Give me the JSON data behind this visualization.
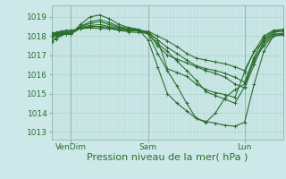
{
  "background_color": "#cce8e8",
  "grid_color_h": "#aad4cc",
  "grid_color_v": "#aad4cc",
  "line_color": "#2d6e2d",
  "marker": "+",
  "markersize": 3,
  "linewidth": 0.8,
  "xlabel": "Pression niveau de la mer( hPa )",
  "xlabel_fontsize": 8,
  "yticks": [
    1013,
    1014,
    1015,
    1016,
    1017,
    1018,
    1019
  ],
  "ylim": [
    1012.6,
    1019.6
  ],
  "xlim": [
    0,
    96
  ],
  "xtick_positions": [
    8,
    40,
    80
  ],
  "xtick_labels": [
    "VenDim",
    "Sam",
    "Lun"
  ],
  "xtick_fontsize": 6.5,
  "ytick_fontsize": 6.5,
  "vlines": [
    8,
    40,
    80
  ],
  "series": [
    [
      0,
      1017.7,
      2,
      1017.9,
      4,
      1018.05,
      6,
      1018.1,
      8,
      1018.1,
      12,
      1018.6,
      16,
      1019.0,
      20,
      1019.1,
      24,
      1018.9,
      28,
      1018.6,
      32,
      1018.45,
      36,
      1018.35,
      40,
      1018.2,
      44,
      1017.8,
      48,
      1016.3,
      52,
      1016.1,
      56,
      1015.9,
      60,
      1015.5,
      64,
      1015.2,
      68,
      1015.05,
      72,
      1014.95,
      76,
      1014.8,
      80,
      1016.1,
      84,
      1017.2,
      88,
      1017.75,
      92,
      1018.1,
      96,
      1018.1
    ],
    [
      0,
      1017.9,
      2,
      1018.0,
      4,
      1018.1,
      6,
      1018.15,
      8,
      1018.15,
      12,
      1018.5,
      16,
      1018.75,
      20,
      1018.85,
      24,
      1018.7,
      28,
      1018.5,
      32,
      1018.4,
      36,
      1018.35,
      40,
      1017.8,
      44,
      1016.4,
      48,
      1015.0,
      52,
      1014.5,
      56,
      1014.1,
      60,
      1013.7,
      64,
      1013.55,
      68,
      1013.45,
      72,
      1013.35,
      76,
      1013.3,
      80,
      1013.5,
      84,
      1015.5,
      88,
      1017.2,
      92,
      1018.0,
      96,
      1018.1
    ],
    [
      0,
      1018.05,
      2,
      1018.1,
      4,
      1018.15,
      6,
      1018.2,
      8,
      1018.2,
      12,
      1018.45,
      16,
      1018.55,
      20,
      1018.6,
      24,
      1018.5,
      28,
      1018.4,
      32,
      1018.35,
      36,
      1018.3,
      40,
      1018.15,
      44,
      1017.5,
      48,
      1017.0,
      52,
      1016.8,
      56,
      1016.6,
      60,
      1016.4,
      64,
      1016.2,
      68,
      1016.05,
      72,
      1015.85,
      76,
      1015.5,
      80,
      1015.3,
      84,
      1016.5,
      88,
      1017.8,
      92,
      1018.2,
      96,
      1018.25
    ],
    [
      0,
      1018.1,
      2,
      1018.15,
      4,
      1018.2,
      6,
      1018.25,
      8,
      1018.25,
      12,
      1018.4,
      16,
      1018.5,
      20,
      1018.5,
      24,
      1018.45,
      28,
      1018.35,
      32,
      1018.3,
      36,
      1018.28,
      40,
      1018.2,
      44,
      1017.8,
      48,
      1017.4,
      52,
      1017.1,
      56,
      1016.75,
      60,
      1016.45,
      64,
      1016.3,
      68,
      1016.2,
      72,
      1016.05,
      76,
      1015.85,
      80,
      1015.6,
      84,
      1016.9,
      88,
      1017.9,
      92,
      1018.25,
      96,
      1018.3
    ],
    [
      0,
      1018.15,
      2,
      1018.2,
      4,
      1018.25,
      6,
      1018.3,
      8,
      1018.3,
      12,
      1018.38,
      16,
      1018.42,
      20,
      1018.4,
      24,
      1018.38,
      28,
      1018.32,
      32,
      1018.29,
      36,
      1018.27,
      40,
      1018.25,
      44,
      1018.0,
      48,
      1017.75,
      52,
      1017.45,
      56,
      1017.1,
      60,
      1016.85,
      64,
      1016.75,
      68,
      1016.65,
      72,
      1016.55,
      76,
      1016.4,
      80,
      1016.2,
      84,
      1017.2,
      88,
      1018.0,
      92,
      1018.3,
      96,
      1018.35
    ],
    [
      0,
      1017.75,
      2,
      1017.85,
      4,
      1018.05,
      6,
      1018.1,
      8,
      1018.1,
      12,
      1018.4,
      16,
      1018.48,
      20,
      1018.5,
      24,
      1018.4,
      28,
      1018.3,
      32,
      1018.22,
      36,
      1018.18,
      40,
      1018.15,
      44,
      1017.6,
      48,
      1017.2,
      52,
      1016.7,
      56,
      1016.2,
      60,
      1015.7,
      64,
      1015.1,
      68,
      1014.9,
      72,
      1014.7,
      76,
      1014.5,
      80,
      1015.35,
      84,
      1016.8,
      88,
      1017.6,
      92,
      1018.1,
      96,
      1018.15
    ],
    [
      0,
      1018.0,
      2,
      1018.05,
      4,
      1018.1,
      6,
      1018.15,
      8,
      1018.15,
      12,
      1018.5,
      16,
      1018.65,
      20,
      1018.75,
      24,
      1018.6,
      28,
      1018.45,
      32,
      1018.35,
      36,
      1018.3,
      40,
      1018.1,
      44,
      1017.1,
      48,
      1016.2,
      52,
      1015.4,
      56,
      1014.5,
      60,
      1013.7,
      64,
      1013.5,
      68,
      1014.0,
      72,
      1014.8,
      76,
      1015.2,
      80,
      1015.5,
      84,
      1016.7,
      88,
      1017.5,
      92,
      1018.0,
      96,
      1018.05
    ]
  ]
}
